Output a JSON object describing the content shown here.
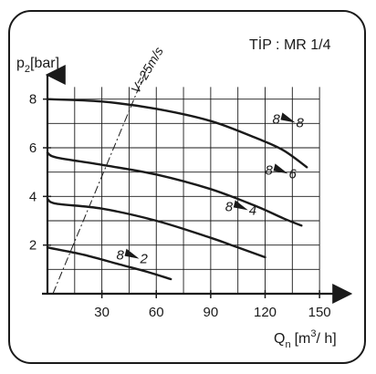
{
  "chart_data": {
    "type": "line",
    "title": "TİP : MR 1/4",
    "ylabel": {
      "main": "p",
      "sub": "2",
      "unit": "[bar]"
    },
    "xlabel": {
      "main": "Q",
      "sub": "n",
      "unit_prefix": "[m",
      "unit_sup": "3",
      "unit_suffix": "/ h]"
    },
    "xlim": [
      0,
      160
    ],
    "ylim": [
      0,
      9
    ],
    "x_ticks": [
      30,
      60,
      90,
      120,
      150
    ],
    "y_ticks": [
      2,
      4,
      6,
      8
    ],
    "x_tick_labels": [
      "30",
      "60",
      "90",
      "120",
      "150"
    ],
    "y_tick_labels": [
      "2",
      "4",
      "6",
      "8"
    ],
    "grid": true,
    "velocity_line": {
      "label": "V=25m/s",
      "points": [
        [
          3,
          0
        ],
        [
          55,
          9.3
        ]
      ]
    },
    "series": [
      {
        "label_a": "8",
        "label_b": "8",
        "label_pos": [
          124,
          7.0
        ],
        "points": [
          [
            0,
            8.0
          ],
          [
            30,
            7.9
          ],
          [
            60,
            7.6
          ],
          [
            90,
            7.1
          ],
          [
            115,
            6.4
          ],
          [
            130,
            5.9
          ],
          [
            143,
            5.2
          ]
        ]
      },
      {
        "label_a": "8",
        "label_b": "6",
        "label_pos": [
          120,
          4.9
        ],
        "points": [
          [
            0,
            5.8
          ],
          [
            5,
            5.6
          ],
          [
            30,
            5.3
          ],
          [
            60,
            4.9
          ],
          [
            90,
            4.3
          ],
          [
            115,
            3.6
          ],
          [
            130,
            3.1
          ],
          [
            140,
            2.8
          ]
        ]
      },
      {
        "label_a": "8",
        "label_b": "4",
        "label_pos": [
          98,
          3.4
        ],
        "points": [
          [
            0,
            3.9
          ],
          [
            5,
            3.7
          ],
          [
            30,
            3.5
          ],
          [
            60,
            3.0
          ],
          [
            90,
            2.3
          ],
          [
            105,
            1.9
          ],
          [
            120,
            1.5
          ]
        ]
      },
      {
        "label_a": "8",
        "label_b": "2",
        "label_pos": [
          38,
          1.4
        ],
        "points": [
          [
            0,
            1.9
          ],
          [
            20,
            1.6
          ],
          [
            40,
            1.2
          ],
          [
            55,
            0.9
          ],
          [
            68,
            0.6
          ]
        ]
      }
    ]
  }
}
